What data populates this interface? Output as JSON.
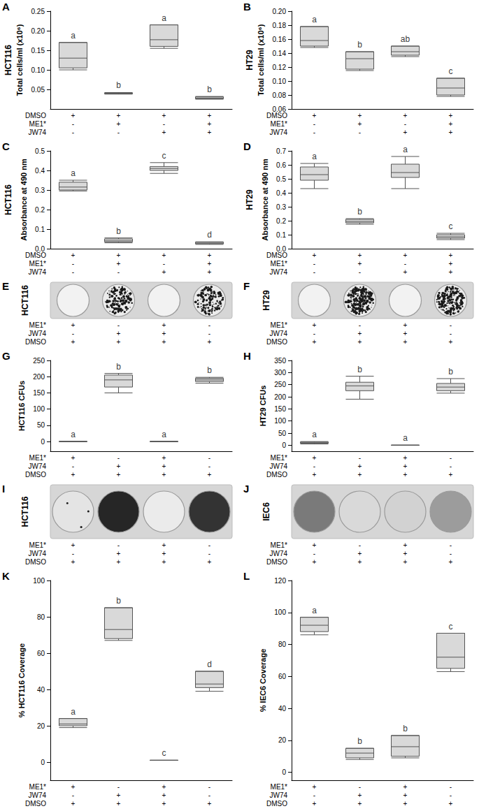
{
  "chart_data": [
    {
      "type": "boxplot",
      "title": "A",
      "cell_line": "HCT116",
      "ylabel": "Total cells/ml (x10⁶)",
      "treatments": [
        {
          "name": "DMSO",
          "values": [
            "+",
            "+",
            "+",
            "+"
          ]
        },
        {
          "name": "ME1*",
          "values": [
            "-",
            "+",
            "-",
            "+"
          ]
        },
        {
          "name": "JW74",
          "values": [
            "-",
            "-",
            "+",
            "+"
          ]
        }
      ],
      "boxes": [
        [
          0.1,
          0.105,
          0.13,
          0.17,
          0.17
        ],
        [
          0.038,
          0.039,
          0.04,
          0.041,
          0.042
        ],
        [
          0.155,
          0.16,
          0.177,
          0.215,
          0.215
        ],
        [
          0.025,
          0.026,
          0.028,
          0.031,
          0.032
        ]
      ],
      "letters": [
        "a",
        "b",
        "a",
        "b"
      ],
      "color": "#d9d9d9",
      "grid": false,
      "ylim": [
        0,
        0.25
      ],
      "yticks": [
        0.05,
        {
          "value": 0.1,
          "label": "0.10"
        },
        0.15,
        {
          "value": 0.2,
          "label": "0.20"
        },
        0.25
      ]
    },
    {
      "type": "boxplot",
      "title": "B",
      "cell_line": "HT29",
      "ylabel": "Total cells/ml (x10⁶)",
      "treatments": [
        {
          "name": "DMSO",
          "values": [
            "+",
            "+",
            "+",
            "+"
          ]
        },
        {
          "name": "ME1*",
          "values": [
            "-",
            "+",
            "-",
            "+"
          ]
        },
        {
          "name": "JW74",
          "values": [
            "-",
            "-",
            "+",
            "+"
          ]
        }
      ],
      "boxes": [
        [
          0.148,
          0.15,
          0.158,
          0.178,
          0.178
        ],
        [
          0.115,
          0.117,
          0.132,
          0.142,
          0.142
        ],
        [
          0.135,
          0.137,
          0.142,
          0.15,
          0.15
        ],
        [
          0.078,
          0.08,
          0.09,
          0.104,
          0.104
        ]
      ],
      "letters": [
        "a",
        "b",
        "ab",
        "c"
      ],
      "color": "#d9d9d9",
      "grid": false,
      "ylim": [
        0.06,
        0.2
      ],
      "yticks": [
        0.06,
        0.08,
        {
          "value": 0.1,
          "label": "0.10"
        },
        0.12,
        0.14,
        0.16,
        0.18,
        {
          "value": 0.2,
          "label": "0.20"
        }
      ]
    },
    {
      "type": "boxplot",
      "title": "C",
      "cell_line": "HCT116",
      "ylabel": "Absorbance at 490 nm",
      "treatments": [
        {
          "name": "DMSO",
          "values": [
            "+",
            "+",
            "+",
            "+"
          ]
        },
        {
          "name": "ME1*",
          "values": [
            "-",
            "+",
            "-",
            "+"
          ]
        },
        {
          "name": "JW74",
          "values": [
            "-",
            "-",
            "+",
            "+"
          ]
        }
      ],
      "boxes": [
        [
          0.295,
          0.3,
          0.315,
          0.34,
          0.35
        ],
        [
          0.03,
          0.035,
          0.04,
          0.05,
          0.055
        ],
        [
          0.385,
          0.4,
          0.41,
          0.42,
          0.44
        ],
        [
          0.022,
          0.025,
          0.028,
          0.033,
          0.035
        ]
      ],
      "letters": [
        "a",
        "b",
        "c",
        "d"
      ],
      "color": "#d9d9d9",
      "grid": false,
      "ylim": [
        0,
        0.5
      ],
      "yticks": [
        {
          "value": 0,
          "label": "0.0"
        },
        0.1,
        0.2,
        0.3,
        0.4,
        0.5
      ]
    },
    {
      "type": "boxplot",
      "title": "D",
      "cell_line": "HT29",
      "ylabel": "Absorbance at 490 nm",
      "treatments": [
        {
          "name": "DMSO",
          "values": [
            "+",
            "+",
            "+",
            "+"
          ]
        },
        {
          "name": "ME1*",
          "values": [
            "-",
            "+",
            "-",
            "+"
          ]
        },
        {
          "name": "JW74",
          "values": [
            "-",
            "-",
            "+",
            "+"
          ]
        }
      ],
      "boxes": [
        [
          0.43,
          0.49,
          0.53,
          0.585,
          0.61
        ],
        [
          0.175,
          0.185,
          0.195,
          0.21,
          0.215
        ],
        [
          0.43,
          0.51,
          0.545,
          0.605,
          0.66
        ],
        [
          0.065,
          0.075,
          0.085,
          0.1,
          0.11
        ]
      ],
      "letters": [
        "a",
        "b",
        "a",
        "c"
      ],
      "color": "#d9d9d9",
      "grid": false,
      "ylim": [
        0,
        0.7
      ],
      "yticks": [
        {
          "value": 0,
          "label": "0.0"
        },
        0.1,
        0.2,
        0.3,
        0.4,
        0.5,
        0.6,
        0.7
      ]
    },
    {
      "type": "image",
      "title": "E",
      "cell_line": "HCT116",
      "treatments": [
        {
          "name": "ME1*",
          "values": [
            "+",
            "-",
            "+",
            "-"
          ]
        },
        {
          "name": "JW74",
          "values": [
            "-",
            "+",
            "+",
            "-"
          ]
        },
        {
          "name": "DMSO",
          "values": [
            "+",
            "+",
            "+",
            "+"
          ]
        }
      ]
    },
    {
      "type": "image",
      "title": "F",
      "cell_line": "HT29",
      "treatments": [
        {
          "name": "ME1*",
          "values": [
            "+",
            "-",
            "+",
            "-"
          ]
        },
        {
          "name": "JW74",
          "values": [
            "-",
            "+",
            "+",
            "-"
          ]
        },
        {
          "name": "DMSO",
          "values": [
            "+",
            "+",
            "+",
            "+"
          ]
        }
      ]
    },
    {
      "type": "boxplot",
      "title": "G",
      "ylabel": "HCT116 CFUs",
      "treatments": [
        {
          "name": "ME1*",
          "values": [
            "+",
            "-",
            "+",
            "-"
          ]
        },
        {
          "name": "JW74",
          "values": [
            "-",
            "+",
            "+",
            "-"
          ]
        },
        {
          "name": "DMSO",
          "values": [
            "+",
            "+",
            "+",
            "+"
          ]
        }
      ],
      "boxes": [
        [
          0,
          0,
          0,
          0,
          0
        ],
        [
          150,
          168,
          190,
          205,
          210
        ],
        [
          0,
          0,
          0,
          0,
          0
        ],
        [
          180,
          185,
          190,
          195,
          198
        ]
      ],
      "letters": [
        "a",
        "b",
        "a",
        "b"
      ],
      "color": "#d9d9d9",
      "grid": false,
      "ylim": [
        -30,
        250
      ],
      "yticks": [
        0,
        50,
        100,
        150,
        200,
        250
      ]
    },
    {
      "type": "boxplot",
      "title": "H",
      "ylabel": "HT29 CFUs",
      "treatments": [
        {
          "name": "ME1*",
          "values": [
            "+",
            "-",
            "+",
            "-"
          ]
        },
        {
          "name": "JW74",
          "values": [
            "-",
            "+",
            "+",
            "-"
          ]
        },
        {
          "name": "DMSO",
          "values": [
            "+",
            "+",
            "+",
            "+"
          ]
        }
      ],
      "boxes": [
        [
          5,
          8,
          10,
          13,
          15
        ],
        [
          190,
          225,
          245,
          260,
          285
        ],
        [
          0,
          0,
          0,
          0,
          0
        ],
        [
          215,
          225,
          240,
          255,
          275
        ]
      ],
      "letters": [
        "a",
        "b",
        "a",
        "b"
      ],
      "color": "#d9d9d9",
      "grid": false,
      "ylim": [
        -25,
        350
      ],
      "yticks": [
        0,
        50,
        100,
        150,
        200,
        250,
        300,
        350
      ]
    },
    {
      "type": "image",
      "title": "I",
      "cell_line": "HCT116",
      "treatments": [
        {
          "name": "ME1*",
          "values": [
            "+",
            "-",
            "+",
            "-"
          ]
        },
        {
          "name": "JW74",
          "values": [
            "-",
            "+",
            "+",
            "-"
          ]
        },
        {
          "name": "DMSO",
          "values": [
            "+",
            "+",
            "+",
            "+"
          ]
        }
      ]
    },
    {
      "type": "image",
      "title": "J",
      "cell_line": "IEC6",
      "treatments": [
        {
          "name": "ME1*",
          "values": [
            "+",
            "-",
            "+",
            "-"
          ]
        },
        {
          "name": "JW74",
          "values": [
            "-",
            "+",
            "+",
            "-"
          ]
        },
        {
          "name": "DMSO",
          "values": [
            "+",
            "+",
            "+",
            "+"
          ]
        }
      ]
    },
    {
      "type": "boxplot",
      "title": "K",
      "ylabel": "% HCT116 Coverage",
      "treatments": [
        {
          "name": "ME1*",
          "values": [
            "+",
            "-",
            "+",
            "-"
          ]
        },
        {
          "name": "JW74",
          "values": [
            "-",
            "+",
            "+",
            "-"
          ]
        },
        {
          "name": "DMSO",
          "values": [
            "+",
            "+",
            "+",
            "+"
          ]
        }
      ],
      "boxes": [
        [
          19,
          20,
          21,
          24,
          24
        ],
        [
          67,
          68,
          73,
          85,
          85
        ],
        [
          1,
          1,
          1,
          1,
          1
        ],
        [
          39,
          41,
          43,
          50,
          50
        ]
      ],
      "letters": [
        "a",
        "b",
        "c",
        "d"
      ],
      "color": "#d9d9d9",
      "grid": false,
      "ylim": [
        -10,
        100
      ],
      "yticks": [
        0,
        20,
        40,
        60,
        80,
        100
      ]
    },
    {
      "type": "boxplot",
      "title": "L",
      "ylabel": "% IEC6 Coverage",
      "treatments": [
        {
          "name": "ME1*",
          "values": [
            "+",
            "-",
            "+",
            "-"
          ]
        },
        {
          "name": "JW74",
          "values": [
            "-",
            "+",
            "+",
            "-"
          ]
        },
        {
          "name": "DMSO",
          "values": [
            "+",
            "+",
            "+",
            "+"
          ]
        }
      ],
      "boxes": [
        [
          86,
          88,
          92,
          97,
          97
        ],
        [
          8,
          9,
          12,
          15,
          15
        ],
        [
          9,
          10,
          16,
          23,
          23
        ],
        [
          63,
          65,
          72,
          87,
          87
        ]
      ],
      "letters": [
        "a",
        "b",
        "b",
        "c"
      ],
      "color": "#d9d9d9",
      "grid": false,
      "ylim": [
        -5,
        120
      ],
      "yticks": [
        0,
        20,
        40,
        60,
        80,
        100,
        120
      ]
    }
  ]
}
